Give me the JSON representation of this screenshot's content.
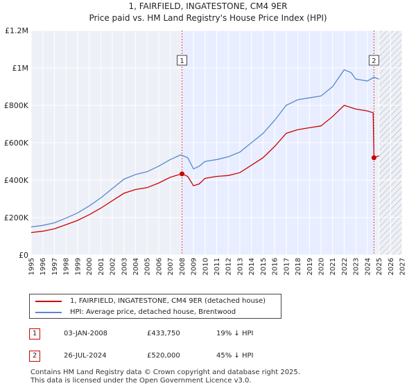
{
  "title_line1": "1, FAIRFIELD, INGATESTONE, CM4 9ER",
  "title_line2": "Price paid vs. HM Land Registry's House Price Index (HPI)",
  "chart_data": {
    "type": "line",
    "title": "1, FAIRFIELD, INGATESTONE, CM4 9ER",
    "subtitle": "Price paid vs. HM Land Registry's House Price Index (HPI)",
    "xlabel": "",
    "ylabel": "",
    "xlim": [
      1995,
      2027
    ],
    "ylim": [
      0,
      1200000
    ],
    "y_ticks": [
      0,
      200000,
      400000,
      600000,
      800000,
      1000000,
      1200000
    ],
    "y_tick_labels": [
      "£0",
      "£200K",
      "£400K",
      "£600K",
      "£800K",
      "£1M",
      "£1.2M"
    ],
    "x_ticks": [
      "1995",
      "1996",
      "1997",
      "1998",
      "1999",
      "2000",
      "2001",
      "2002",
      "2003",
      "2004",
      "2005",
      "2006",
      "2007",
      "2008",
      "2009",
      "2010",
      "2011",
      "2012",
      "2013",
      "2014",
      "2015",
      "2016",
      "2017",
      "2018",
      "2019",
      "2020",
      "2021",
      "2022",
      "2023",
      "2024",
      "2025",
      "2026",
      "2027"
    ],
    "grid": true,
    "shaded_ownership_period": [
      2008.01,
      2024.57
    ],
    "projection_hatch_from": 2025.0,
    "series": [
      {
        "name": "1, FAIRFIELD, INGATESTONE, CM4 9ER (detached house)",
        "color": "#cc0000",
        "x": [
          1995,
          1996,
          1997,
          1998,
          1999,
          2000,
          2001,
          2002,
          2003,
          2004,
          2005,
          2006,
          2007,
          2007.5,
          2008.01,
          2008.5,
          2009.0,
          2009.5,
          2010,
          2011,
          2012,
          2013,
          2014,
          2015,
          2016,
          2017,
          2018,
          2019,
          2020,
          2021,
          2022,
          2022.5,
          2023,
          2024.0,
          2024.5,
          2024.57,
          2025.0
        ],
        "y": [
          120000,
          127000,
          140000,
          162000,
          185000,
          215000,
          250000,
          290000,
          330000,
          350000,
          360000,
          385000,
          415000,
          425000,
          433750,
          420000,
          370000,
          380000,
          410000,
          420000,
          425000,
          440000,
          480000,
          520000,
          580000,
          650000,
          670000,
          680000,
          690000,
          740000,
          800000,
          790000,
          780000,
          770000,
          760000,
          520000,
          530000
        ]
      },
      {
        "name": "HPI: Average price, detached house, Brentwood",
        "color": "#5588cc",
        "x": [
          1995,
          1996,
          1997,
          1998,
          1999,
          2000,
          2001,
          2002,
          2003,
          2004,
          2005,
          2006,
          2007,
          2007.9,
          2008.5,
          2009.0,
          2009.5,
          2010,
          2011,
          2012,
          2013,
          2014,
          2015,
          2016,
          2017,
          2018,
          2019,
          2020,
          2021,
          2022,
          2022.6,
          2023,
          2024,
          2024.57,
          2025.0
        ],
        "y": [
          150000,
          158000,
          172000,
          197000,
          225000,
          262000,
          305000,
          355000,
          405000,
          430000,
          445000,
          475000,
          510000,
          535000,
          520000,
          460000,
          475000,
          500000,
          510000,
          525000,
          550000,
          600000,
          650000,
          720000,
          800000,
          830000,
          840000,
          850000,
          900000,
          990000,
          975000,
          940000,
          930000,
          950000,
          940000
        ]
      }
    ],
    "annotations": [
      {
        "label": "1",
        "x": 2008.01,
        "y": 433750
      },
      {
        "label": "2",
        "x": 2024.57,
        "y": 520000
      }
    ]
  },
  "legend": {
    "property_label": "1, FAIRFIELD, INGATESTONE, CM4 9ER (detached house)",
    "hpi_label": "HPI: Average price, detached house, Brentwood"
  },
  "transactions": [
    {
      "num": "1",
      "date": "03-JAN-2008",
      "price": "£433,750",
      "hpi": "19% ↓ HPI"
    },
    {
      "num": "2",
      "date": "26-JUL-2024",
      "price": "£520,000",
      "hpi": "45% ↓ HPI"
    }
  ],
  "footer": {
    "line1": "Contains HM Land Registry data © Crown copyright and database right 2025.",
    "line2": "This data is licensed under the Open Government Licence v3.0."
  },
  "colors": {
    "property": "#cc0000",
    "hpi": "#5588cc",
    "shade": "#e8eeff",
    "grid": "#ffffff",
    "plot_bg": "#eef0f8"
  }
}
